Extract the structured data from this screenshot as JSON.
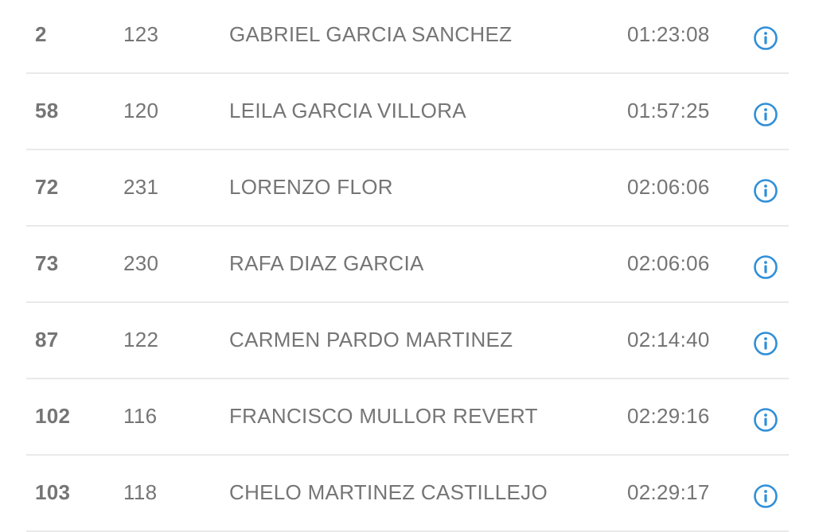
{
  "accent_color": "#2f8fd8",
  "results": [
    {
      "position": "2",
      "bib": "123",
      "name": "GABRIEL GARCIA SANCHEZ",
      "time": "01:23:08",
      "icon": "info-icon"
    },
    {
      "position": "58",
      "bib": "120",
      "name": "LEILA GARCIA VILLORA",
      "time": "01:57:25",
      "icon": "info-icon"
    },
    {
      "position": "72",
      "bib": "231",
      "name": "LORENZO FLOR",
      "time": "02:06:06",
      "icon": "info-icon"
    },
    {
      "position": "73",
      "bib": "230",
      "name": "RAFA DIAZ GARCIA",
      "time": "02:06:06",
      "icon": "info-icon"
    },
    {
      "position": "87",
      "bib": "122",
      "name": "CARMEN PARDO MARTINEZ",
      "time": "02:14:40",
      "icon": "info-icon"
    },
    {
      "position": "102",
      "bib": "116",
      "name": "FRANCISCO MULLOR REVERT",
      "time": "02:29:16",
      "icon": "info-icon"
    },
    {
      "position": "103",
      "bib": "118",
      "name": "CHELO MARTINEZ CASTILLEJO",
      "time": "02:29:17",
      "icon": "info-icon"
    }
  ]
}
